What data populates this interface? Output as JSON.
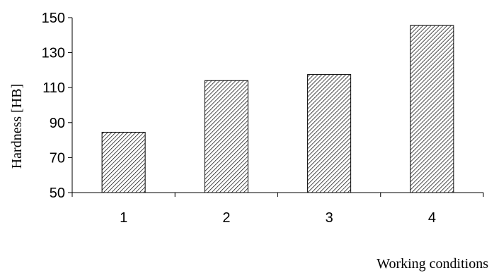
{
  "chart_data": {
    "type": "bar",
    "categories": [
      "1",
      "2",
      "3",
      "4"
    ],
    "values": [
      84.5,
      114,
      117.5,
      145.5
    ],
    "xlabel": "Working conditions",
    "ylabel": "Hardness [HB]",
    "ylim": [
      50,
      150
    ],
    "yticks": [
      50,
      70,
      90,
      110,
      130,
      150
    ],
    "grid": false,
    "legend": "none",
    "bar_fill": "diagonal-hatch",
    "colors": {
      "bar_stroke": "#000000",
      "hatch": "#000000",
      "background": "#ffffff"
    }
  }
}
